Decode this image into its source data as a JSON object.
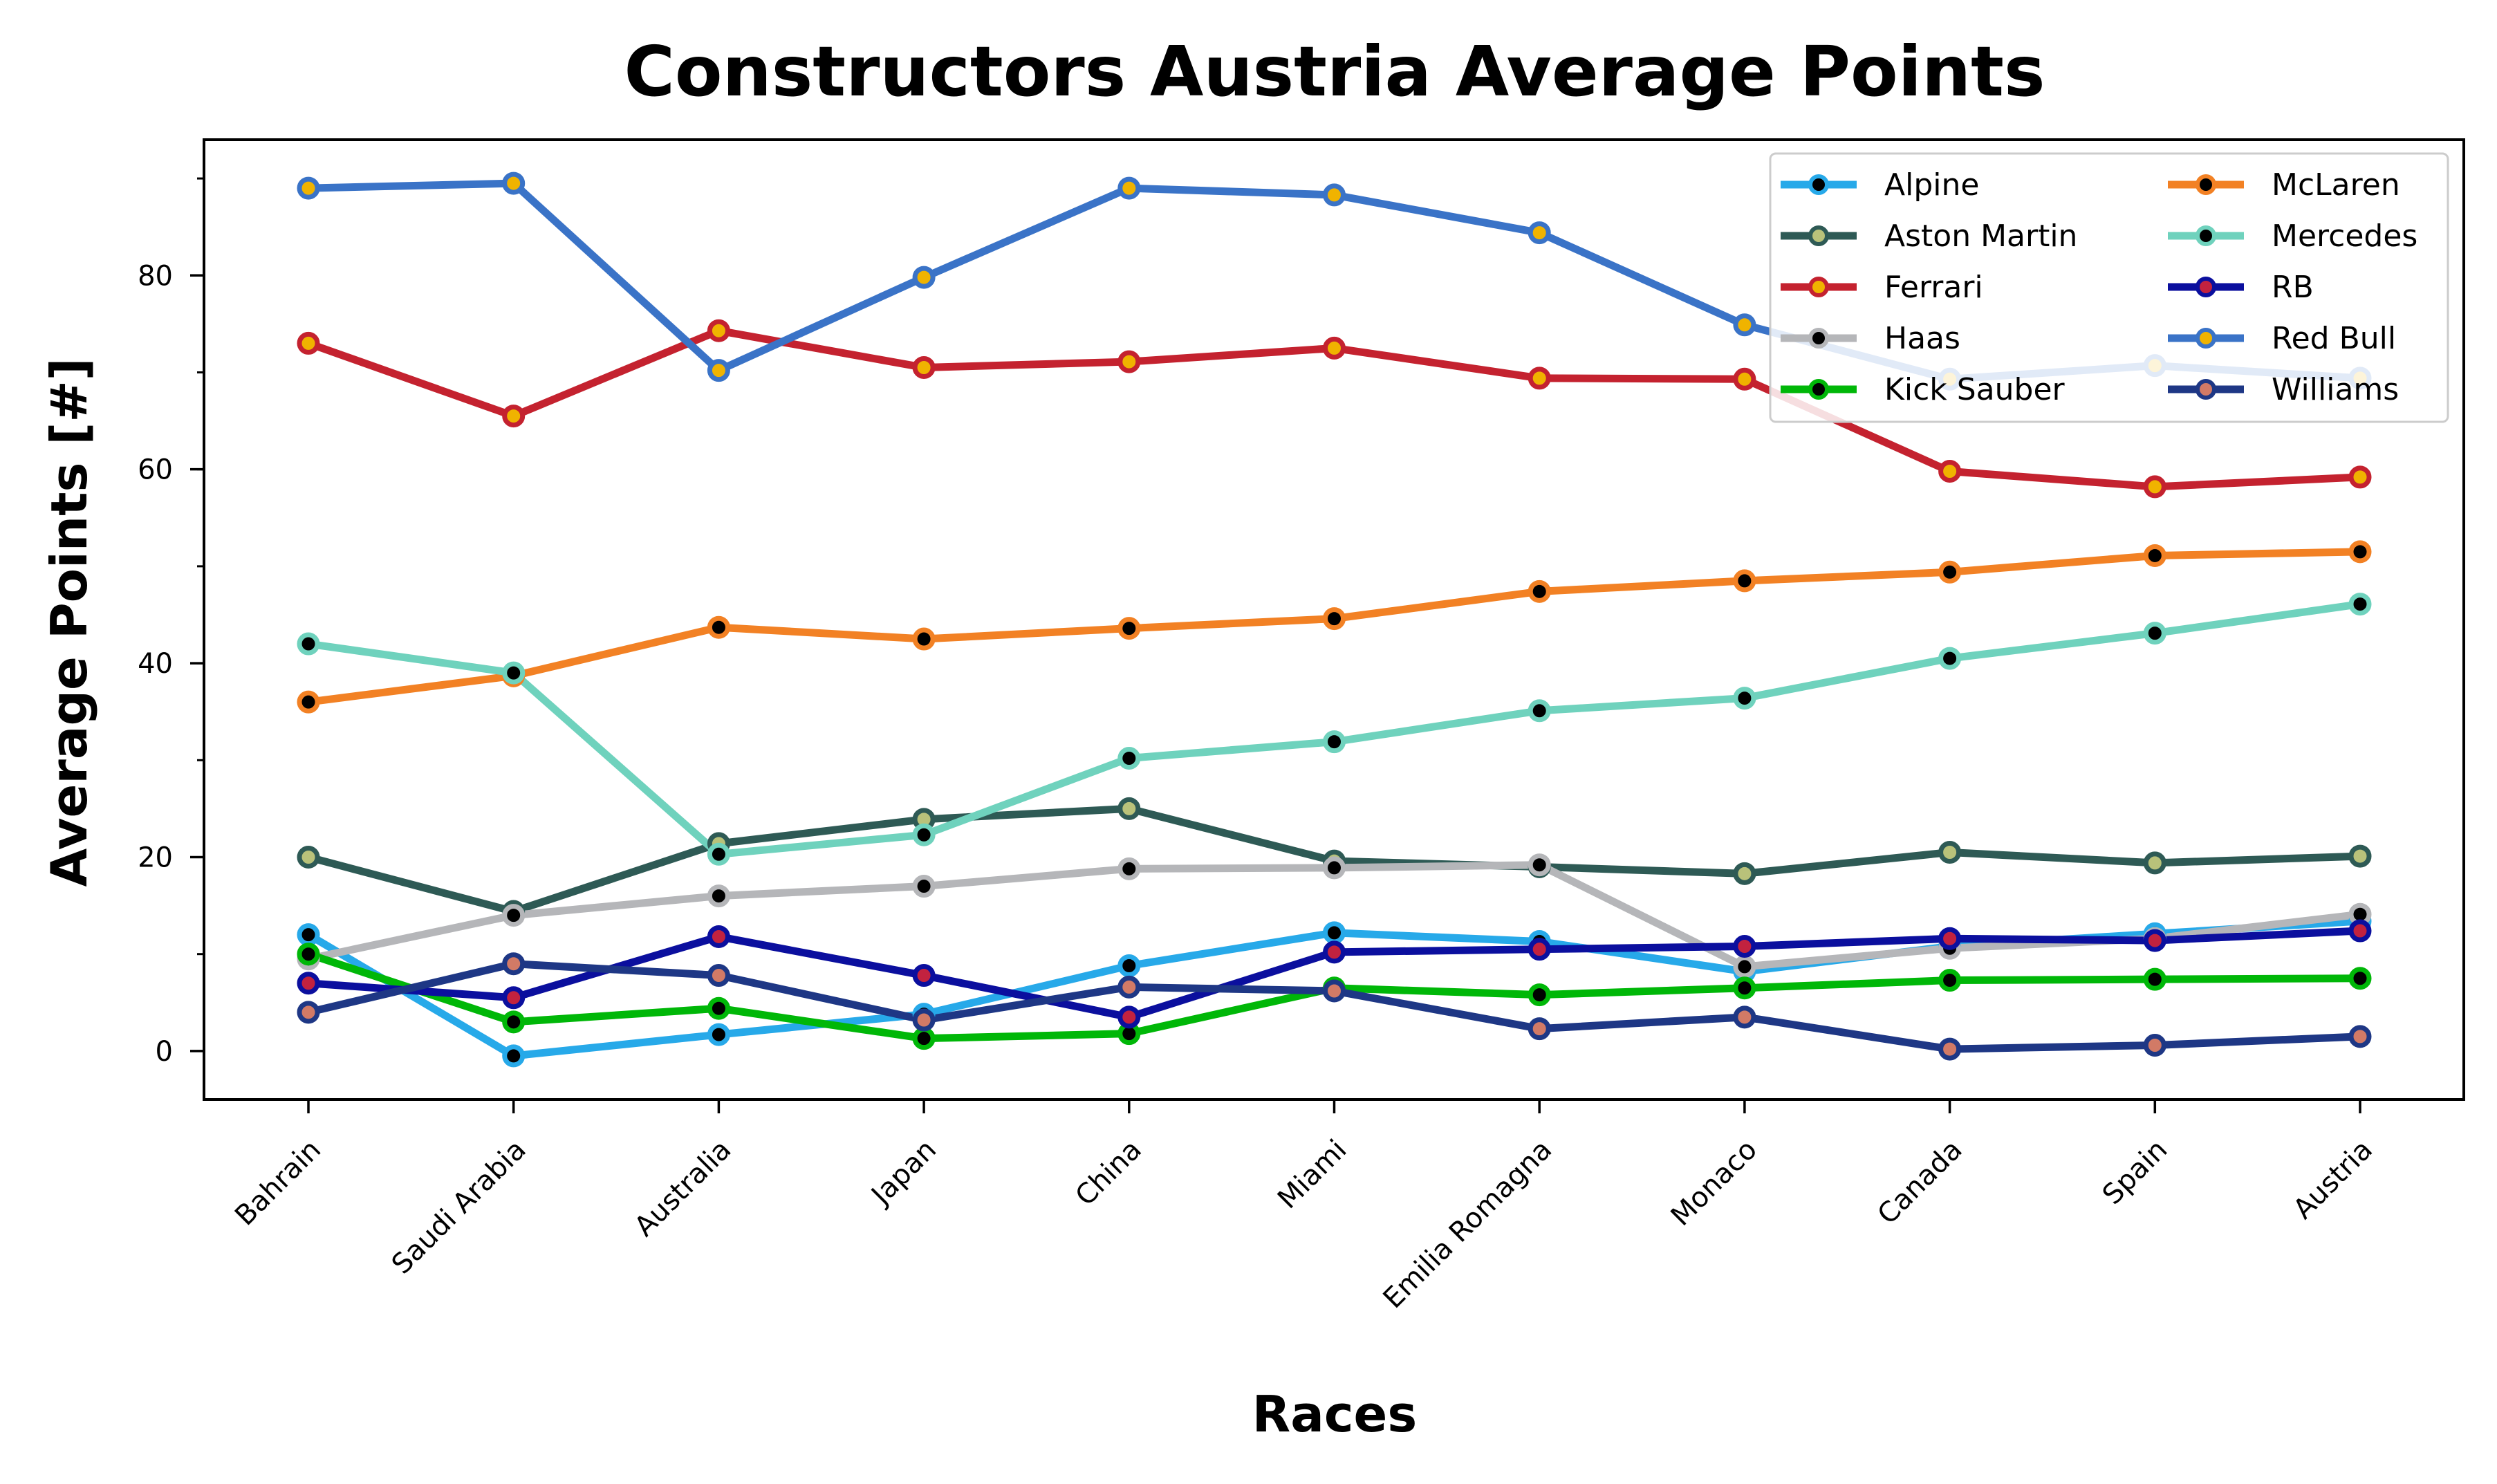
{
  "chart_data": {
    "type": "line",
    "title": "Constructors Austria Average Points",
    "xlabel": "Races",
    "ylabel": "Average Points [#]",
    "categories": [
      "Bahrain",
      "Saudi Arabia",
      "Australia",
      "Japan",
      "China",
      "Miami",
      "Emilia Romagna",
      "Monaco",
      "Canada",
      "Spain",
      "Austria"
    ],
    "ylim": [
      -5,
      94
    ],
    "yticks": [
      0,
      20,
      40,
      60,
      80
    ],
    "ytick_labels": [
      "0",
      "20",
      "40",
      "60",
      "80"
    ],
    "grid": false,
    "legend": {
      "position": "top-right",
      "columns": 2
    },
    "series": [
      {
        "name": "Alpine",
        "color": "#27a9e9",
        "marker_fill": "#000000",
        "values": [
          12,
          -0.5,
          1.7,
          3.8,
          8.8,
          12.2,
          11.3,
          8.2,
          10.8,
          12.1,
          13.4
        ]
      },
      {
        "name": "Aston Martin",
        "color": "#2e5a55",
        "marker_fill": "#b9c27a",
        "values": [
          20,
          14.4,
          21.4,
          23.9,
          25,
          19.6,
          19,
          18.3,
          20.5,
          19.4,
          20.1
        ]
      },
      {
        "name": "Ferrari",
        "color": "#c4222f",
        "marker_fill": "#f0b300",
        "values": [
          73,
          65.5,
          74.3,
          70.5,
          71.1,
          72.5,
          69.4,
          69.3,
          59.8,
          58.2,
          59.2
        ]
      },
      {
        "name": "Haas",
        "color": "#b5b6b9",
        "marker_fill": "#000000",
        "values": [
          9.5,
          14,
          16,
          17,
          18.8,
          18.9,
          19.2,
          8.7,
          10.6,
          11.6,
          14.1
        ]
      },
      {
        "name": "Kick Sauber",
        "color": "#00b708",
        "marker_fill": "#000000",
        "values": [
          10,
          3,
          4.4,
          1.3,
          1.8,
          6.5,
          5.8,
          6.5,
          7.3,
          7.4,
          7.5
        ]
      },
      {
        "name": "McLaren",
        "color": "#f28124",
        "marker_fill": "#000000",
        "values": [
          36,
          38.7,
          43.7,
          42.5,
          43.6,
          44.6,
          47.4,
          48.5,
          49.4,
          51.1,
          51.5
        ]
      },
      {
        "name": "Mercedes",
        "color": "#6fd2bd",
        "marker_fill": "#000000",
        "values": [
          42,
          39,
          20.3,
          22.3,
          30.2,
          31.9,
          35.1,
          36.4,
          40.5,
          43.1,
          46.1
        ]
      },
      {
        "name": "RB",
        "color": "#0b0f9e",
        "marker_fill": "#c2223f",
        "values": [
          7,
          5.5,
          11.8,
          7.8,
          3.5,
          10.2,
          10.5,
          10.8,
          11.6,
          11.4,
          12.4
        ]
      },
      {
        "name": "Red Bull",
        "color": "#3a73c7",
        "marker_fill": "#f0b300",
        "values": [
          89,
          89.5,
          70.2,
          79.8,
          89,
          88.3,
          84.4,
          74.9,
          69.3,
          70.7,
          69.4
        ]
      },
      {
        "name": "Williams",
        "color": "#1e3785",
        "marker_fill": "#d27a66",
        "values": [
          4,
          9,
          7.8,
          3.2,
          6.6,
          6.2,
          2.3,
          3.5,
          0.2,
          0.6,
          1.5
        ]
      }
    ]
  }
}
